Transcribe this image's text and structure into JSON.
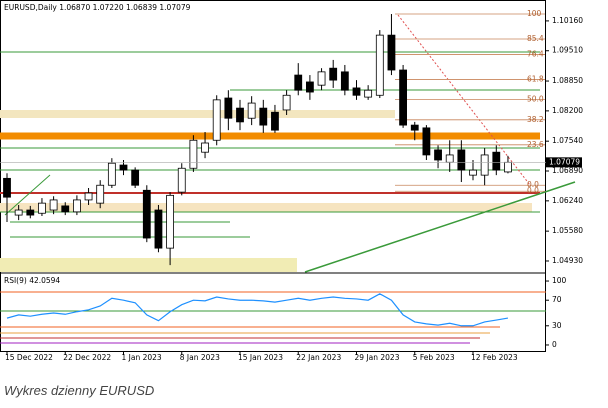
{
  "chart_data": {
    "type": "candlestick",
    "title": "EURUSD,Daily 1.06870 1.07220 1.06839 1.07079",
    "caption": "Wykres dzienny EURUSD",
    "categories": [
      "15 Dec 2022",
      null,
      null,
      null,
      null,
      "22 Dec 2022",
      null,
      null,
      null,
      null,
      "1 Jan 2023",
      null,
      null,
      null,
      null,
      "8 Jan 2023",
      null,
      null,
      null,
      null,
      "15 Jan 2023",
      null,
      null,
      null,
      null,
      "22 Jan 2023",
      null,
      null,
      null,
      null,
      "29 Jan 2023",
      null,
      null,
      null,
      null,
      "5 Feb 2023",
      null,
      null,
      null,
      null,
      "12 Feb 2023",
      null,
      null,
      null
    ],
    "open": [
      1.0673,
      1.0593,
      1.0604,
      1.0597,
      1.0604,
      1.0613,
      1.06,
      1.0626,
      1.0619,
      1.0658,
      1.0702,
      1.0691,
      1.0647,
      1.0604,
      1.0521,
      1.0643,
      1.0695,
      1.073,
      1.0756,
      1.0848,
      1.0826,
      1.0804,
      1.0826,
      1.0817,
      1.0822,
      1.0898,
      1.0883,
      1.0876,
      1.0913,
      1.0905,
      1.087,
      1.085,
      1.0854,
      1.0985,
      1.0909,
      1.0789,
      1.0783,
      1.0735,
      1.0708,
      1.0735,
      1.068,
      1.068,
      1.073,
      1.0687
    ],
    "high": [
      1.0684,
      1.0615,
      1.0613,
      1.063,
      1.0634,
      1.0621,
      1.0636,
      1.0652,
      1.0669,
      1.0717,
      1.0713,
      1.0697,
      1.0658,
      1.0615,
      1.0643,
      1.0706,
      1.0767,
      1.0774,
      1.0854,
      1.0865,
      1.0844,
      1.0852,
      1.0844,
      1.0833,
      1.0865,
      1.0924,
      1.0898,
      1.0913,
      1.0931,
      1.092,
      1.0887,
      1.0876,
      1.0996,
      1.1031,
      1.092,
      1.0796,
      1.0789,
      1.0745,
      1.0756,
      1.0756,
      1.0713,
      1.0739,
      1.0745,
      1.0722
    ],
    "low": [
      1.0578,
      1.0582,
      1.0586,
      1.0591,
      1.0595,
      1.0593,
      1.0593,
      1.0615,
      1.0608,
      1.0652,
      1.068,
      1.0652,
      1.0534,
      1.0512,
      1.0484,
      1.0636,
      1.0687,
      1.0717,
      1.0745,
      1.0778,
      1.0778,
      1.0789,
      1.0772,
      1.0772,
      1.0811,
      1.0854,
      1.0844,
      1.0865,
      1.087,
      1.0854,
      1.0844,
      1.0844,
      1.0848,
      1.0898,
      1.0783,
      1.0756,
      1.0713,
      1.0695,
      1.0687,
      1.0665,
      1.0669,
      1.0658,
      1.068,
      1.06839
    ],
    "close": [
      1.0632,
      1.0604,
      1.0593,
      1.0619,
      1.0626,
      1.06,
      1.0626,
      1.0641,
      1.0658,
      1.0706,
      1.0691,
      1.0658,
      1.0543,
      1.0521,
      1.0636,
      1.0695,
      1.0756,
      1.075,
      1.0844,
      1.0804,
      1.0796,
      1.0837,
      1.0789,
      1.0778,
      1.0854,
      1.0865,
      1.0861,
      1.0905,
      1.0887,
      1.0865,
      1.0854,
      1.0865,
      1.0985,
      1.0909,
      1.0789,
      1.0778,
      1.0724,
      1.0713,
      1.0724,
      1.0691,
      1.0691,
      1.0724,
      1.0691,
      1.07079
    ],
    "ylim": [
      1.0469,
      1.1055
    ],
    "yticks": [
      {
        "value": 1.1016,
        "label": "1.10160"
      },
      {
        "value": 1.0951,
        "label": "1.09510"
      },
      {
        "value": 1.0885,
        "label": "1.08850"
      },
      {
        "value": 1.082,
        "label": "1.08200"
      },
      {
        "value": 1.0754,
        "label": "1.07540"
      },
      {
        "value": 1.0689,
        "label": "1.06890"
      },
      {
        "value": 1.0624,
        "label": "1.06240"
      },
      {
        "value": 1.0558,
        "label": "1.05580"
      },
      {
        "value": 1.0493,
        "label": "1.04930"
      }
    ],
    "last_price": {
      "value": 1.07079,
      "label": "1.07079"
    },
    "fib_levels": [
      100,
      {
        "value": 85.4,
        "label": "85.4"
      },
      {
        "value": 76.4,
        "label": "76.4"
      },
      {
        "value": 61.8,
        "label": "61.8"
      },
      {
        "value": 50,
        "label": "50.0"
      },
      {
        "value": 38.2,
        "label": "38.2"
      },
      {
        "value": 23.6,
        "label": "23.6"
      },
      {
        "value": 0,
        "label": "0.0"
      },
      {
        "value": 0,
        "label": "0.0"
      }
    ],
    "indicator": {
      "name": "RSI(9) 42.0594",
      "values": [
        42,
        47,
        45,
        48,
        50,
        48,
        52,
        55,
        61,
        73,
        70,
        66,
        47,
        38,
        52,
        63,
        70,
        69,
        75,
        72,
        70,
        70,
        69,
        67,
        70,
        73,
        70,
        73,
        75,
        73,
        72,
        70,
        80,
        70,
        47,
        36,
        33,
        31,
        34,
        30,
        30,
        36,
        39,
        42.0594
      ],
      "color": "#1e90ff",
      "ylim": [
        -11,
        111
      ],
      "yticks": [
        100,
        70,
        30,
        0
      ]
    }
  }
}
